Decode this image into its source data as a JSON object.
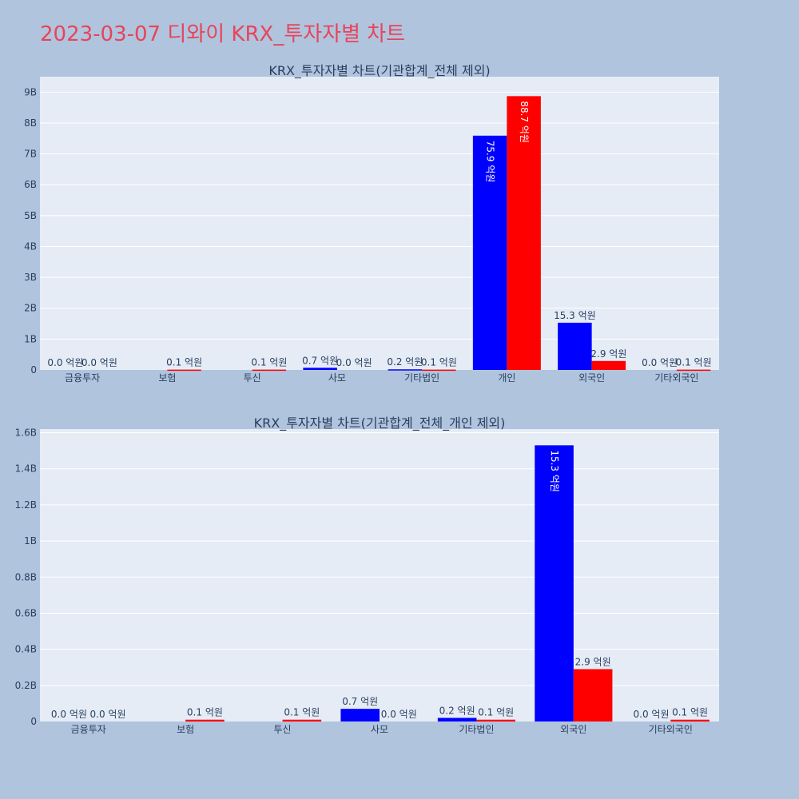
{
  "page": {
    "title": "2023-03-07 디와이 KRX_투자자별 차트"
  },
  "colors": {
    "background": "#b0c4de",
    "plot_bg": "#e5ecf6",
    "title": "#e8445a",
    "buy": "#0000ff",
    "sell": "#ff0000",
    "text": "#2a3f5f"
  },
  "chart_data": [
    {
      "type": "bar",
      "title": "KRX_투자자별 차트(기관합계_전체 제외)",
      "categories": [
        "금융투자",
        "보험",
        "투신",
        "사모",
        "기타법인",
        "개인",
        "외국인",
        "기타외국인"
      ],
      "ylim": [
        0,
        9500000000
      ],
      "yticks": [
        0,
        1000000000,
        2000000000,
        3000000000,
        4000000000,
        5000000000,
        6000000000,
        7000000000,
        8000000000,
        9000000000
      ],
      "ytick_labels": [
        "0",
        "1B",
        "2B",
        "3B",
        "4B",
        "5B",
        "6B",
        "7B",
        "8B",
        "9B"
      ],
      "grid": true,
      "series": [
        {
          "values": [
            0,
            0,
            0,
            70000000,
            20000000,
            7590000000,
            1530000000,
            0
          ],
          "labels": [
            "0.0 억원",
            "",
            "",
            "0.7 억원",
            "0.2 억원",
            "75.9 억원",
            "15.3 억원",
            "0.0 억원"
          ]
        },
        {
          "values": [
            0,
            10000000,
            10000000,
            0,
            10000000,
            8870000000,
            290000000,
            10000000
          ],
          "labels": [
            "0.0 억원",
            "0.1 억원",
            "0.1 억원",
            "0.0 억원",
            "0.1 억원",
            "88.7 억원",
            "2.9 억원",
            "0.1 억원"
          ]
        }
      ]
    },
    {
      "type": "bar",
      "title": "KRX_투자자별 차트(기관합계_전체_개인 제외)",
      "categories": [
        "금융투자",
        "보험",
        "투신",
        "사모",
        "기타법인",
        "외국인",
        "기타외국인"
      ],
      "ylim": [
        0,
        1620000000
      ],
      "yticks": [
        0,
        200000000,
        400000000,
        600000000,
        800000000,
        1000000000,
        1200000000,
        1400000000,
        1600000000
      ],
      "ytick_labels": [
        "0",
        "0.2B",
        "0.4B",
        "0.6B",
        "0.8B",
        "1B",
        "1.2B",
        "1.4B",
        "1.6B"
      ],
      "grid": true,
      "series": [
        {
          "values": [
            0,
            0,
            0,
            70000000,
            20000000,
            1530000000,
            0
          ],
          "labels": [
            "0.0 억원",
            "",
            "",
            "0.7 억원",
            "0.2 억원",
            "15.3 억원",
            "0.0 억원"
          ]
        },
        {
          "values": [
            0,
            10000000,
            10000000,
            0,
            10000000,
            290000000,
            10000000
          ],
          "labels": [
            "0.0 억원",
            "0.1 억원",
            "0.1 억원",
            "0.0 억원",
            "0.1 억원",
            "2.9 억원",
            "0.1 억원"
          ]
        }
      ]
    }
  ]
}
